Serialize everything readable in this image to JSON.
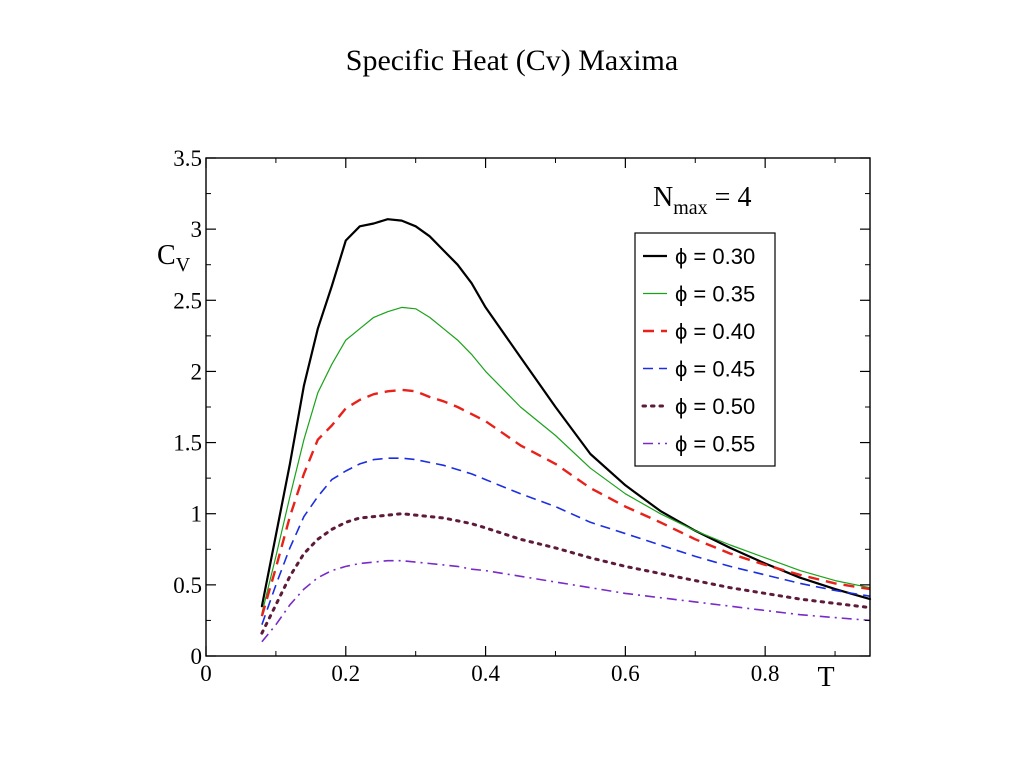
{
  "slide": {
    "title": "Specific Heat (Cv) Maxima"
  },
  "chart_data": {
    "type": "line",
    "xlabel": "T",
    "ylabel": "C",
    "ylabel_sub": "V",
    "xlim": [
      0,
      0.95
    ],
    "ylim": [
      0,
      3.5
    ],
    "xticks": [
      0,
      0.2,
      0.4,
      0.6,
      0.8
    ],
    "xtick_labels": [
      "0",
      "0.2",
      "0.4",
      "0.6",
      "0.8"
    ],
    "yticks": [
      0,
      0.5,
      1,
      1.5,
      2,
      2.5,
      3,
      3.5
    ],
    "ytick_labels": [
      "0",
      "0.5",
      "1",
      "1.5",
      "2",
      "2.5",
      "3",
      "3.5"
    ],
    "grid": false,
    "legend": {
      "placement": "top-right",
      "title": "N",
      "title_sub": "max",
      "title_suffix": " = 4"
    },
    "series": [
      {
        "name": "ϕ = 0.30",
        "color": "#000000",
        "dash": "solid",
        "width": 2.2,
        "x": [
          0.08,
          0.1,
          0.12,
          0.14,
          0.16,
          0.18,
          0.2,
          0.22,
          0.24,
          0.26,
          0.28,
          0.3,
          0.32,
          0.34,
          0.36,
          0.38,
          0.4,
          0.45,
          0.5,
          0.55,
          0.6,
          0.65,
          0.7,
          0.75,
          0.8,
          0.85,
          0.9,
          0.95
        ],
        "y": [
          0.35,
          0.85,
          1.35,
          1.9,
          2.3,
          2.6,
          2.92,
          3.02,
          3.04,
          3.07,
          3.06,
          3.02,
          2.95,
          2.85,
          2.75,
          2.62,
          2.45,
          2.1,
          1.75,
          1.42,
          1.2,
          1.02,
          0.88,
          0.76,
          0.65,
          0.55,
          0.47,
          0.4
        ]
      },
      {
        "name": "ϕ = 0.35",
        "color": "#1aa31a",
        "dash": "solid",
        "width": 1.2,
        "x": [
          0.08,
          0.1,
          0.12,
          0.14,
          0.16,
          0.18,
          0.2,
          0.22,
          0.24,
          0.26,
          0.28,
          0.3,
          0.32,
          0.34,
          0.36,
          0.38,
          0.4,
          0.45,
          0.5,
          0.55,
          0.6,
          0.65,
          0.7,
          0.75,
          0.8,
          0.85,
          0.9,
          0.95
        ],
        "y": [
          0.3,
          0.7,
          1.12,
          1.52,
          1.85,
          2.05,
          2.22,
          2.3,
          2.38,
          2.42,
          2.45,
          2.44,
          2.38,
          2.3,
          2.22,
          2.12,
          2.0,
          1.75,
          1.55,
          1.32,
          1.14,
          1.0,
          0.88,
          0.78,
          0.69,
          0.6,
          0.53,
          0.48
        ]
      },
      {
        "name": "ϕ = 0.40",
        "color": "#e8211a",
        "dash": "11,7",
        "width": 2.4,
        "x": [
          0.08,
          0.1,
          0.12,
          0.14,
          0.16,
          0.18,
          0.2,
          0.22,
          0.24,
          0.26,
          0.28,
          0.3,
          0.32,
          0.34,
          0.36,
          0.38,
          0.4,
          0.45,
          0.5,
          0.55,
          0.6,
          0.65,
          0.7,
          0.75,
          0.8,
          0.85,
          0.9,
          0.95
        ],
        "y": [
          0.28,
          0.62,
          0.98,
          1.28,
          1.52,
          1.62,
          1.74,
          1.8,
          1.84,
          1.86,
          1.87,
          1.86,
          1.82,
          1.79,
          1.75,
          1.7,
          1.65,
          1.48,
          1.35,
          1.18,
          1.05,
          0.94,
          0.82,
          0.72,
          0.64,
          0.57,
          0.51,
          0.47
        ]
      },
      {
        "name": "ϕ = 0.45",
        "color": "#1c2fe0",
        "dash": "10,6",
        "width": 1.6,
        "x": [
          0.08,
          0.1,
          0.12,
          0.14,
          0.16,
          0.18,
          0.2,
          0.22,
          0.24,
          0.26,
          0.28,
          0.3,
          0.32,
          0.34,
          0.36,
          0.38,
          0.4,
          0.45,
          0.5,
          0.55,
          0.6,
          0.65,
          0.7,
          0.75,
          0.8,
          0.85,
          0.9,
          0.95
        ],
        "y": [
          0.22,
          0.5,
          0.76,
          0.98,
          1.12,
          1.24,
          1.3,
          1.35,
          1.38,
          1.39,
          1.39,
          1.38,
          1.36,
          1.34,
          1.31,
          1.28,
          1.24,
          1.14,
          1.05,
          0.94,
          0.86,
          0.78,
          0.7,
          0.63,
          0.57,
          0.51,
          0.46,
          0.42
        ]
      },
      {
        "name": "ϕ = 0.50",
        "color": "#5e1a3a",
        "dash": "2.5,6",
        "width": 3,
        "x": [
          0.08,
          0.1,
          0.12,
          0.14,
          0.16,
          0.18,
          0.2,
          0.22,
          0.24,
          0.26,
          0.28,
          0.3,
          0.32,
          0.34,
          0.36,
          0.38,
          0.4,
          0.45,
          0.5,
          0.55,
          0.6,
          0.65,
          0.7,
          0.75,
          0.8,
          0.85,
          0.9,
          0.95
        ],
        "y": [
          0.16,
          0.36,
          0.56,
          0.72,
          0.82,
          0.89,
          0.94,
          0.97,
          0.98,
          0.99,
          1.0,
          0.99,
          0.98,
          0.97,
          0.95,
          0.93,
          0.9,
          0.82,
          0.76,
          0.69,
          0.63,
          0.58,
          0.53,
          0.48,
          0.44,
          0.4,
          0.37,
          0.34
        ]
      },
      {
        "name": "ϕ = 0.55",
        "color": "#7a2ac8",
        "dash": "10,5,2,5",
        "width": 1.6,
        "x": [
          0.08,
          0.1,
          0.12,
          0.14,
          0.16,
          0.18,
          0.2,
          0.22,
          0.24,
          0.26,
          0.28,
          0.3,
          0.32,
          0.34,
          0.36,
          0.38,
          0.4,
          0.45,
          0.5,
          0.55,
          0.6,
          0.65,
          0.7,
          0.75,
          0.8,
          0.85,
          0.9,
          0.95
        ],
        "y": [
          0.1,
          0.22,
          0.36,
          0.47,
          0.55,
          0.6,
          0.63,
          0.65,
          0.66,
          0.67,
          0.67,
          0.66,
          0.65,
          0.64,
          0.63,
          0.61,
          0.6,
          0.56,
          0.52,
          0.48,
          0.44,
          0.41,
          0.38,
          0.35,
          0.32,
          0.29,
          0.27,
          0.25
        ]
      }
    ]
  }
}
